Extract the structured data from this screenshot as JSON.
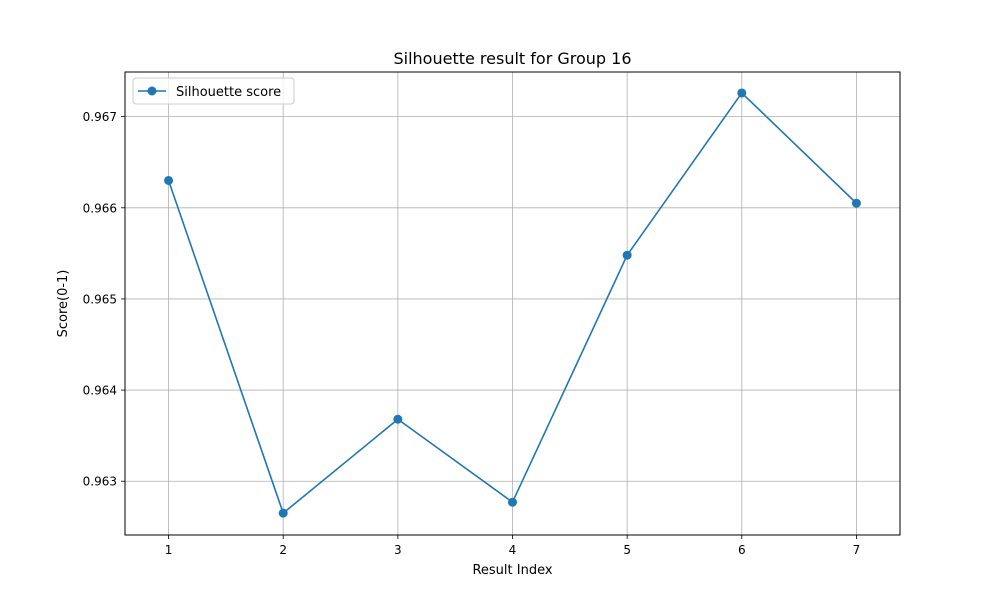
{
  "chart_data": {
    "type": "line",
    "title": "Silhouette result for Group 16",
    "xlabel": "Result Index",
    "ylabel": "Score(0-1)",
    "x": [
      1,
      2,
      3,
      4,
      5,
      6,
      7
    ],
    "xticks": [
      "1",
      "2",
      "3",
      "4",
      "5",
      "6",
      "7"
    ],
    "yticks": [
      "0.963",
      "0.964",
      "0.965",
      "0.966",
      "0.967"
    ],
    "xlim": [
      0.62,
      7.38
    ],
    "ylim": [
      0.96241,
      0.96749
    ],
    "grid": true,
    "legend_position": "top-left",
    "series": [
      {
        "name": "Silhouette score",
        "color": "#1f77b4",
        "marker": "circle",
        "values": [
          0.9663,
          0.96265,
          0.96368,
          0.96277,
          0.96548,
          0.96726,
          0.96605
        ]
      }
    ]
  }
}
